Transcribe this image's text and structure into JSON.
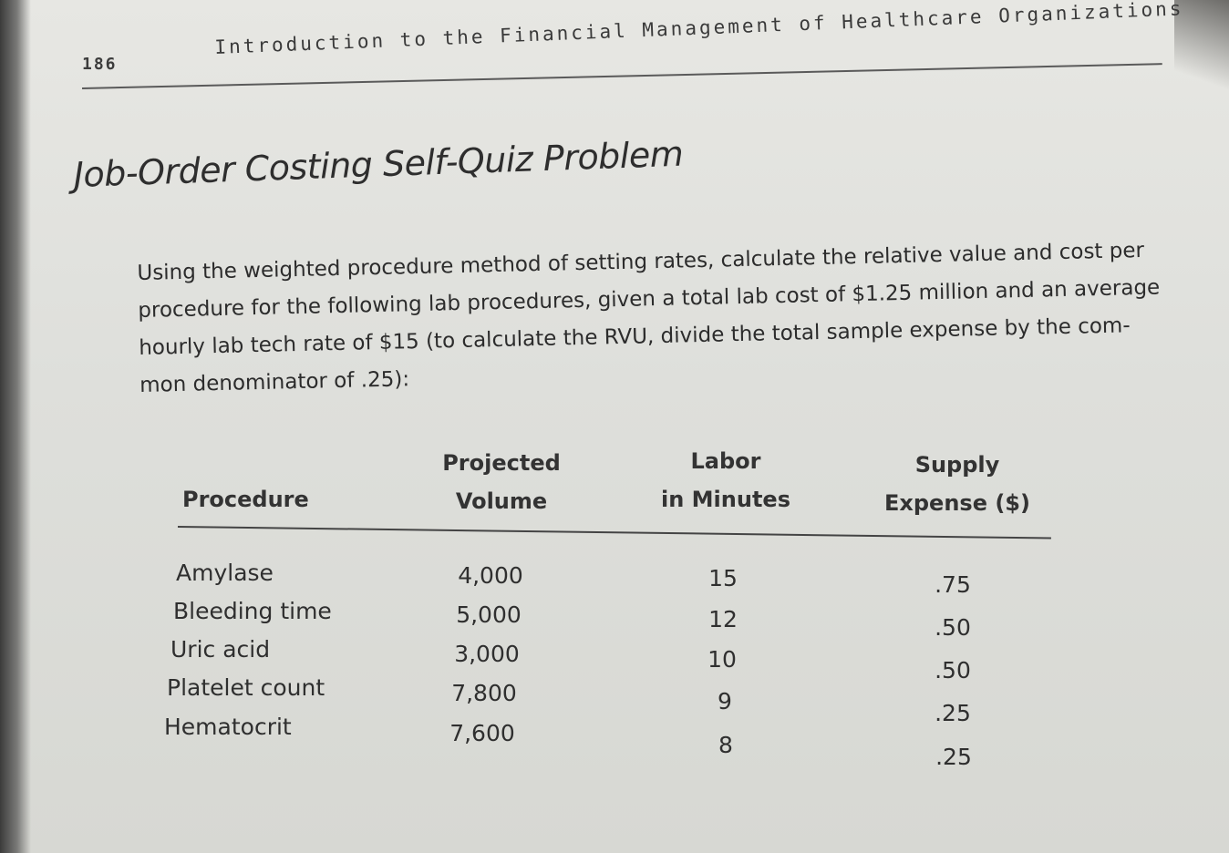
{
  "page_number": "186",
  "running_head": "Introduction to the Financial Management of Healthcare Organizations",
  "title": "Job-Order Costing Self-Quiz Problem",
  "intro_lines": [
    "Using the weighted procedure method of setting rates, calculate the relative value and cost per",
    "procedure for the following lab procedures, given a total lab cost of $1.25 million and an average",
    "hourly lab tech rate of $15 (to calculate the RVU, divide the total sample expense by the com-",
    "mon denominator of .25):"
  ],
  "table": {
    "headers": {
      "procedure": "Procedure",
      "volume": [
        "Projected",
        "Volume"
      ],
      "labor": [
        "Labor",
        "in Minutes"
      ],
      "supply": [
        "Supply",
        "Expense ($)"
      ]
    },
    "rows": [
      {
        "procedure": "Amylase",
        "volume": "4,000",
        "labor": "15",
        "supply": ".75"
      },
      {
        "procedure": "Bleeding time",
        "volume": "5,000",
        "labor": "12",
        "supply": ".50"
      },
      {
        "procedure": "Uric acid",
        "volume": "3,000",
        "labor": "10",
        "supply": ".50"
      },
      {
        "procedure": "Platelet count",
        "volume": "7,800",
        "labor": "9",
        "supply": ".25"
      },
      {
        "procedure": "Hematocrit",
        "volume": "7,600",
        "labor": "8",
        "supply": ".25"
      }
    ]
  }
}
